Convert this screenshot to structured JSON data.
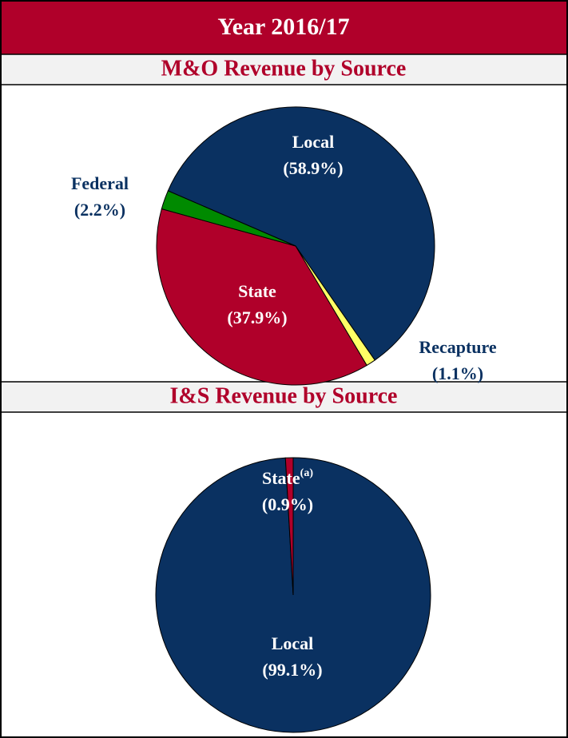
{
  "header": {
    "title": "Year 2016/17"
  },
  "chart_data": [
    {
      "type": "pie",
      "title": "M&O Revenue by Source",
      "categories": [
        "Local",
        "Recapture",
        "State",
        "Federal"
      ],
      "values": [
        58.9,
        1.1,
        37.9,
        2.2
      ],
      "value_labels": [
        "(58.9%)",
        "(1.1%)",
        "(37.9%)",
        "(2.2%)"
      ],
      "colors": [
        "#0a3161",
        "#ffff66",
        "#b0002a",
        "#008a00"
      ]
    },
    {
      "type": "pie",
      "title": "I&S Revenue by Source",
      "categories": [
        "Local",
        "State"
      ],
      "values": [
        99.1,
        0.9
      ],
      "value_labels": [
        "(99.1%)",
        "(0.9%)"
      ],
      "superscripts": [
        null,
        "(a)"
      ],
      "colors": [
        "#0a3161",
        "#b0002a"
      ]
    }
  ]
}
